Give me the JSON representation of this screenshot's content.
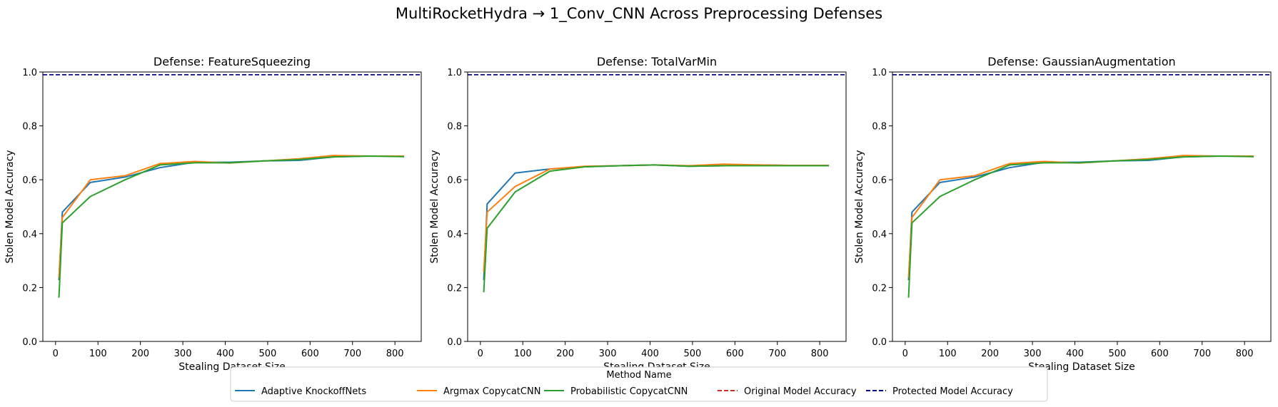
{
  "figure": {
    "title": "MultiRocketHydra → 1_Conv_CNN Across Preprocessing Defenses"
  },
  "legend": {
    "title": "Method Name",
    "placement": "bottom-center",
    "entries": [
      {
        "label": "Adaptive KnockoffNets",
        "color": "#1f77b4",
        "style": "solid"
      },
      {
        "label": "Argmax CopycatCNN",
        "color": "#ff7f0e",
        "style": "solid"
      },
      {
        "label": "Probabilistic CopycatCNN",
        "color": "#2ca02c",
        "style": "solid"
      },
      {
        "label": "Original Model Accuracy",
        "color": "#d62728",
        "style": "dashed"
      },
      {
        "label": "Protected Model Accuracy",
        "color": "#00008b",
        "style": "dashed"
      }
    ]
  },
  "chart_data": [
    {
      "type": "line",
      "title": "Defense: FeatureSqueezing",
      "xlabel": "Stealing Dataset Size",
      "ylabel": "Stolen Model Accuracy",
      "xlim": [
        -30,
        862
      ],
      "ylim": [
        0,
        1.0
      ],
      "xticks": [
        0,
        100,
        200,
        300,
        400,
        500,
        600,
        700,
        800
      ],
      "yticks": [
        0.0,
        0.2,
        0.4,
        0.6,
        0.8,
        1.0
      ],
      "grid": false,
      "x": [
        8,
        16,
        82,
        164,
        246,
        328,
        410,
        492,
        574,
        656,
        738,
        820
      ],
      "series": [
        {
          "name": "Adaptive KnockoffNets",
          "color": "#1f77b4",
          "x": [
            8,
            16,
            82,
            164,
            246,
            328,
            410,
            492,
            574,
            656,
            738,
            820
          ],
          "values": [
            0.23,
            0.48,
            0.59,
            0.61,
            0.645,
            0.665,
            0.665,
            0.67,
            0.672,
            0.685,
            0.688,
            0.688
          ]
        },
        {
          "name": "Argmax CopycatCNN",
          "color": "#ff7f0e",
          "x": [
            8,
            16,
            82,
            164,
            246,
            328,
            410,
            492,
            574,
            656,
            738,
            820
          ],
          "values": [
            0.24,
            0.46,
            0.6,
            0.615,
            0.66,
            0.668,
            0.662,
            0.67,
            0.678,
            0.69,
            0.688,
            0.688
          ]
        },
        {
          "name": "Probabilistic CopycatCNN",
          "color": "#2ca02c",
          "x": [
            8,
            16,
            82,
            164,
            246,
            328,
            410,
            492,
            574,
            656,
            738,
            820
          ],
          "values": [
            0.165,
            0.44,
            0.538,
            0.6,
            0.655,
            0.663,
            0.663,
            0.67,
            0.675,
            0.685,
            0.688,
            0.686
          ]
        }
      ],
      "reference_lines": [
        {
          "name": "Original Model Accuracy",
          "color": "#d62728",
          "y": 0.99
        },
        {
          "name": "Protected Model Accuracy",
          "color": "#00008b",
          "y": 0.99
        }
      ]
    },
    {
      "type": "line",
      "title": "Defense: TotalVarMin",
      "xlabel": "Stealing Dataset Size",
      "ylabel": "Stolen Model Accuracy",
      "xlim": [
        -30,
        862
      ],
      "ylim": [
        0,
        1.0
      ],
      "xticks": [
        0,
        100,
        200,
        300,
        400,
        500,
        600,
        700,
        800
      ],
      "yticks": [
        0.0,
        0.2,
        0.4,
        0.6,
        0.8,
        1.0
      ],
      "grid": false,
      "x": [
        8,
        16,
        82,
        164,
        246,
        328,
        410,
        492,
        574,
        656,
        738,
        820
      ],
      "series": [
        {
          "name": "Adaptive KnockoffNets",
          "color": "#1f77b4",
          "x": [
            8,
            16,
            82,
            164,
            246,
            328,
            410,
            492,
            574,
            656,
            738,
            820
          ],
          "values": [
            0.23,
            0.51,
            0.625,
            0.64,
            0.648,
            0.652,
            0.655,
            0.65,
            0.652,
            0.655,
            0.653,
            0.653
          ]
        },
        {
          "name": "Argmax CopycatCNN",
          "color": "#ff7f0e",
          "x": [
            8,
            16,
            82,
            164,
            246,
            328,
            410,
            492,
            574,
            656,
            738,
            820
          ],
          "values": [
            0.26,
            0.48,
            0.575,
            0.64,
            0.65,
            0.652,
            0.655,
            0.652,
            0.658,
            0.655,
            0.653,
            0.653
          ]
        },
        {
          "name": "Probabilistic CopycatCNN",
          "color": "#2ca02c",
          "x": [
            8,
            16,
            82,
            164,
            246,
            328,
            410,
            492,
            574,
            656,
            738,
            820
          ],
          "values": [
            0.185,
            0.42,
            0.555,
            0.632,
            0.648,
            0.652,
            0.655,
            0.65,
            0.652,
            0.652,
            0.652,
            0.652
          ]
        }
      ],
      "reference_lines": [
        {
          "name": "Original Model Accuracy",
          "color": "#d62728",
          "y": 0.99
        },
        {
          "name": "Protected Model Accuracy",
          "color": "#00008b",
          "y": 0.99
        }
      ]
    },
    {
      "type": "line",
      "title": "Defense: GaussianAugmentation",
      "xlabel": "Stealing Dataset Size",
      "ylabel": "Stolen Model Accuracy",
      "xlim": [
        -30,
        862
      ],
      "ylim": [
        0,
        1.0
      ],
      "xticks": [
        0,
        100,
        200,
        300,
        400,
        500,
        600,
        700,
        800
      ],
      "yticks": [
        0.0,
        0.2,
        0.4,
        0.6,
        0.8,
        1.0
      ],
      "grid": false,
      "x": [
        8,
        16,
        82,
        164,
        246,
        328,
        410,
        492,
        574,
        656,
        738,
        820
      ],
      "series": [
        {
          "name": "Adaptive KnockoffNets",
          "color": "#1f77b4",
          "x": [
            8,
            16,
            82,
            164,
            246,
            328,
            410,
            492,
            574,
            656,
            738,
            820
          ],
          "values": [
            0.23,
            0.48,
            0.59,
            0.61,
            0.645,
            0.665,
            0.665,
            0.67,
            0.672,
            0.685,
            0.688,
            0.688
          ]
        },
        {
          "name": "Argmax CopycatCNN",
          "color": "#ff7f0e",
          "x": [
            8,
            16,
            82,
            164,
            246,
            328,
            410,
            492,
            574,
            656,
            738,
            820
          ],
          "values": [
            0.24,
            0.46,
            0.6,
            0.615,
            0.66,
            0.668,
            0.662,
            0.67,
            0.678,
            0.69,
            0.688,
            0.688
          ]
        },
        {
          "name": "Probabilistic CopycatCNN",
          "color": "#2ca02c",
          "x": [
            8,
            16,
            82,
            164,
            246,
            328,
            410,
            492,
            574,
            656,
            738,
            820
          ],
          "values": [
            0.165,
            0.44,
            0.538,
            0.6,
            0.655,
            0.663,
            0.663,
            0.67,
            0.675,
            0.685,
            0.688,
            0.686
          ]
        }
      ],
      "reference_lines": [
        {
          "name": "Original Model Accuracy",
          "color": "#d62728",
          "y": 0.99
        },
        {
          "name": "Protected Model Accuracy",
          "color": "#00008b",
          "y": 0.99
        }
      ]
    }
  ]
}
